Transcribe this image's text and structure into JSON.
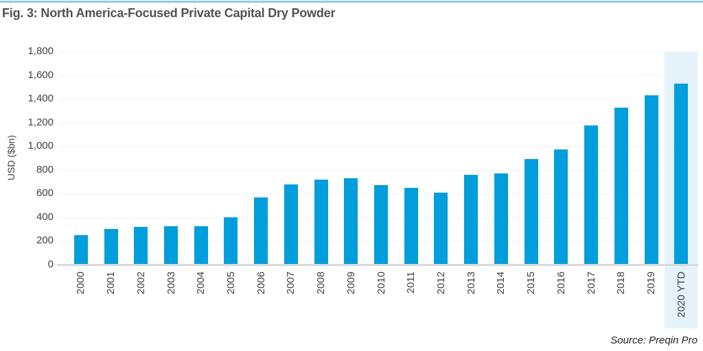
{
  "page": {
    "title": "Fig. 3: North America-Focused Private Capital Dry Powder",
    "source": "Source: Preqin Pro"
  },
  "colors": {
    "bar": "#009EDB",
    "bar_highlight_band": "#E4F2FA",
    "top_rule": "#8FCBE9",
    "title_text": "#515254",
    "axis_text": "#414042",
    "source_text": "#231F20",
    "gridline": "#F2F2F2",
    "baseline": "#D8D9DA"
  },
  "chart_data": {
    "type": "bar",
    "title": "Fig. 3: North America-Focused Private Capital Dry Powder",
    "ylabel": "USD ($bn)",
    "xlabel": "",
    "ylim": [
      0,
      1800
    ],
    "ytick_interval": 200,
    "ytick_labels": [
      "1,800",
      "1,600",
      "1,400",
      "1,200",
      "1,000",
      "800",
      "600",
      "400",
      "200",
      "0"
    ],
    "grid": "horizontal",
    "legend": "none",
    "highlighted_category": "2020 YTD",
    "source": "Source: Preqin Pro",
    "categories": [
      "2000",
      "2001",
      "2002",
      "2003",
      "2004",
      "2005",
      "2006",
      "2007",
      "2008",
      "2009",
      "2010",
      "2011",
      "2012",
      "2013",
      "2014",
      "2015",
      "2016",
      "2017",
      "2018",
      "2019",
      "2020 YTD"
    ],
    "values": [
      250,
      300,
      320,
      325,
      325,
      400,
      570,
      675,
      720,
      730,
      670,
      650,
      605,
      760,
      770,
      890,
      970,
      1175,
      1325,
      1430,
      1530
    ]
  }
}
